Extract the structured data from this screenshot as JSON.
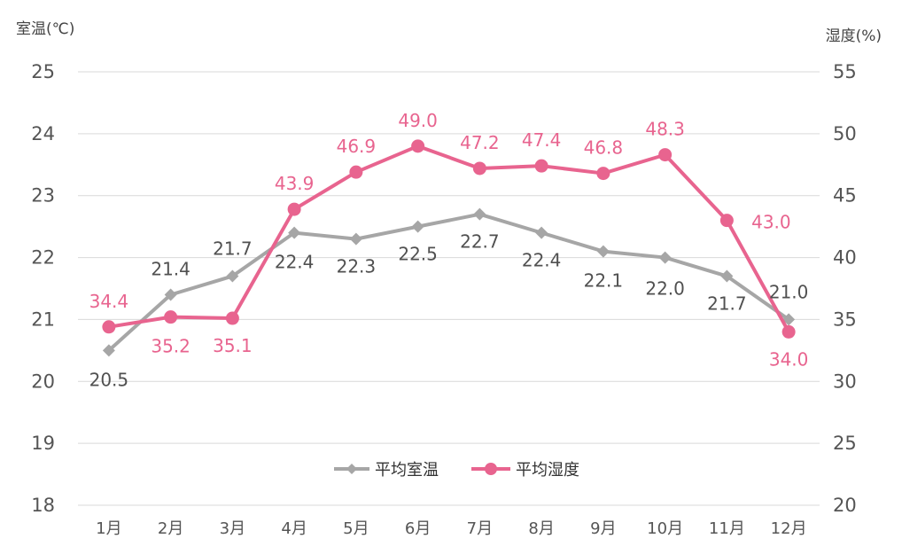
{
  "chart_data": {
    "type": "line",
    "categories": [
      "1月",
      "2月",
      "3月",
      "4月",
      "5月",
      "6月",
      "7月",
      "8月",
      "9月",
      "10月",
      "11月",
      "12月"
    ],
    "ylabel_left": "室温(℃)",
    "ylabel_right": "湿度(%)",
    "ylim_left": [
      18,
      25
    ],
    "ylim_right": [
      20,
      55
    ],
    "yticks_left": [
      18,
      19,
      20,
      21,
      22,
      23,
      24,
      25
    ],
    "yticks_right": [
      20,
      25,
      30,
      35,
      40,
      45,
      50,
      55
    ],
    "grid": true,
    "legend_position": "bottom-center",
    "series": [
      {
        "name": "平均室温",
        "axis": "left",
        "color": "#a6a6a6",
        "marker": "diamond",
        "values": [
          20.5,
          21.4,
          21.7,
          22.4,
          22.3,
          22.5,
          22.7,
          22.4,
          22.1,
          22.0,
          21.7,
          21.0
        ],
        "labels": [
          "20.5",
          "21.4",
          "21.7",
          "22.4",
          "22.3",
          "22.5",
          "22.7",
          "22.4",
          "22.1",
          "22.0",
          "21.7",
          "21.0"
        ]
      },
      {
        "name": "平均湿度",
        "axis": "right",
        "color": "#e8648f",
        "marker": "circle",
        "values": [
          34.4,
          35.2,
          35.1,
          43.9,
          46.9,
          49.0,
          47.2,
          47.4,
          46.8,
          48.3,
          43.0,
          34.0
        ],
        "labels": [
          "34.4",
          "35.2",
          "35.1",
          "43.9",
          "46.9",
          "49.0",
          "47.2",
          "47.4",
          "46.8",
          "48.3",
          "43.0",
          "34.0"
        ]
      }
    ]
  }
}
